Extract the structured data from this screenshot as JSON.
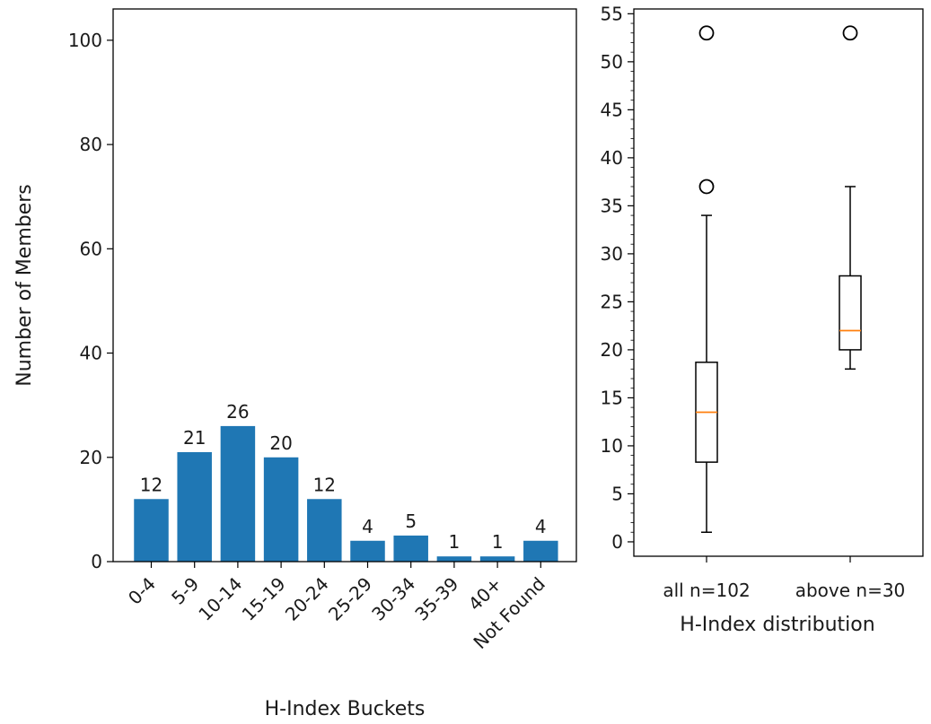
{
  "chart_data": [
    {
      "type": "bar",
      "xlabel": "H-Index Buckets",
      "ylabel": "Number of Members",
      "ylim": [
        0,
        106
      ],
      "yticks": [
        0,
        20,
        40,
        60,
        80,
        100
      ],
      "categories": [
        "0-4",
        "5-9",
        "10-14",
        "15-19",
        "20-24",
        "25-29",
        "30-34",
        "35-39",
        "40+",
        "Not Found"
      ],
      "values": [
        12,
        21,
        26,
        20,
        12,
        4,
        5,
        1,
        1,
        4
      ],
      "bar_color": "#1f77b4",
      "grid": false
    },
    {
      "type": "box",
      "xlabel": "H-Index distribution",
      "ylim": [
        -1.5,
        55.5
      ],
      "yticks": [
        0,
        5,
        10,
        15,
        20,
        25,
        30,
        35,
        40,
        45,
        50,
        55
      ],
      "median_color": "#ff7f0e",
      "grid": false,
      "boxes": [
        {
          "label": "all n=102",
          "min": 1,
          "q1": 8.3,
          "median": 13.5,
          "q3": 18.7,
          "max": 34,
          "outliers": [
            37,
            53
          ]
        },
        {
          "label": "above n=30",
          "min": 18,
          "q1": 20,
          "median": 22,
          "q3": 27.7,
          "max": 37,
          "outliers": [
            53
          ]
        }
      ]
    }
  ]
}
